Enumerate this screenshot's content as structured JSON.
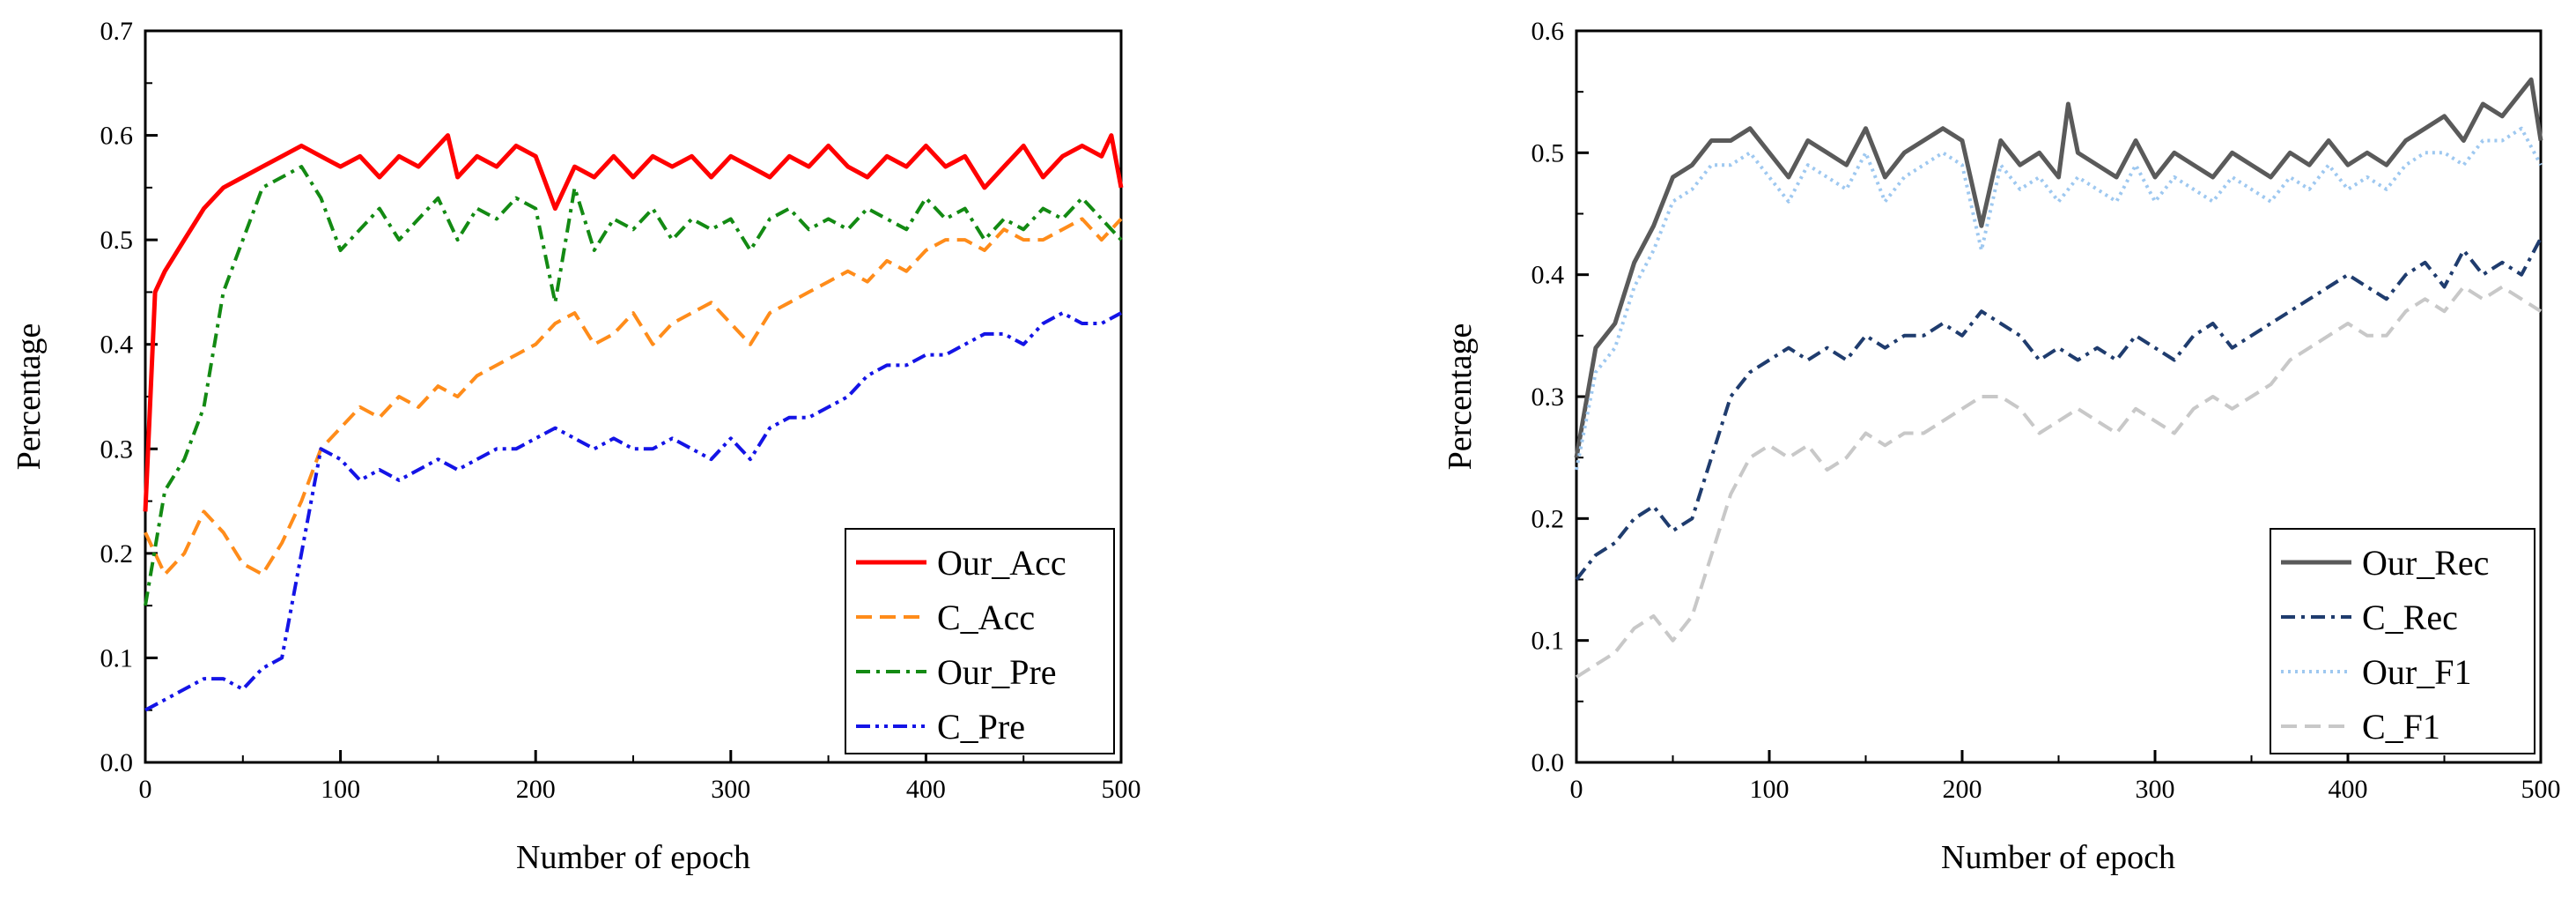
{
  "chart_data": [
    {
      "type": "line",
      "xlabel": "Number of epoch",
      "ylabel": "Percentage",
      "xlim": [
        0,
        500
      ],
      "ylim": [
        0,
        0.7
      ],
      "xticks": [
        "0",
        "100",
        "200",
        "300",
        "400",
        "500"
      ],
      "yticks": [
        "0.0",
        "0.1",
        "0.2",
        "0.3",
        "0.4",
        "0.5",
        "0.6",
        "0.7"
      ],
      "grid": false,
      "legend_position": "bottom-right",
      "series": [
        {
          "name": "Our_Acc",
          "color": "#ff0000",
          "style": "solid",
          "x": [
            0,
            5,
            10,
            20,
            30,
            40,
            50,
            60,
            70,
            80,
            90,
            100,
            110,
            120,
            130,
            140,
            150,
            155,
            160,
            170,
            180,
            190,
            200,
            210,
            220,
            230,
            240,
            250,
            260,
            270,
            280,
            290,
            300,
            310,
            320,
            330,
            340,
            350,
            360,
            370,
            380,
            390,
            400,
            410,
            420,
            430,
            440,
            450,
            460,
            470,
            480,
            490,
            495,
            500
          ],
          "values": [
            0.24,
            0.45,
            0.47,
            0.5,
            0.53,
            0.55,
            0.56,
            0.57,
            0.58,
            0.59,
            0.58,
            0.57,
            0.58,
            0.56,
            0.58,
            0.57,
            0.59,
            0.6,
            0.56,
            0.58,
            0.57,
            0.59,
            0.58,
            0.53,
            0.57,
            0.56,
            0.58,
            0.56,
            0.58,
            0.57,
            0.58,
            0.56,
            0.58,
            0.57,
            0.56,
            0.58,
            0.57,
            0.59,
            0.57,
            0.56,
            0.58,
            0.57,
            0.59,
            0.57,
            0.58,
            0.55,
            0.57,
            0.59,
            0.56,
            0.58,
            0.59,
            0.58,
            0.6,
            0.55
          ]
        },
        {
          "name": "C_Acc",
          "color": "#ff8c1a",
          "style": "dashed",
          "x": [
            0,
            10,
            20,
            30,
            40,
            50,
            60,
            70,
            80,
            90,
            100,
            110,
            120,
            130,
            140,
            150,
            160,
            170,
            180,
            190,
            200,
            210,
            220,
            230,
            240,
            250,
            260,
            270,
            280,
            290,
            300,
            310,
            320,
            330,
            340,
            350,
            360,
            370,
            380,
            390,
            400,
            410,
            420,
            430,
            440,
            450,
            460,
            470,
            480,
            490,
            500
          ],
          "values": [
            0.22,
            0.18,
            0.2,
            0.24,
            0.22,
            0.19,
            0.18,
            0.21,
            0.25,
            0.3,
            0.32,
            0.34,
            0.33,
            0.35,
            0.34,
            0.36,
            0.35,
            0.37,
            0.38,
            0.39,
            0.4,
            0.42,
            0.43,
            0.4,
            0.41,
            0.43,
            0.4,
            0.42,
            0.43,
            0.44,
            0.42,
            0.4,
            0.43,
            0.44,
            0.45,
            0.46,
            0.47,
            0.46,
            0.48,
            0.47,
            0.49,
            0.5,
            0.5,
            0.49,
            0.51,
            0.5,
            0.5,
            0.51,
            0.52,
            0.5,
            0.52
          ]
        },
        {
          "name": "Our_Pre",
          "color": "#138a13",
          "style": "dashdot",
          "x": [
            0,
            10,
            20,
            30,
            40,
            50,
            60,
            70,
            80,
            90,
            100,
            110,
            120,
            130,
            140,
            150,
            160,
            170,
            180,
            190,
            200,
            210,
            220,
            230,
            240,
            250,
            260,
            270,
            280,
            290,
            300,
            310,
            320,
            330,
            340,
            350,
            360,
            370,
            380,
            390,
            400,
            410,
            420,
            430,
            440,
            450,
            460,
            470,
            480,
            490,
            500
          ],
          "values": [
            0.15,
            0.26,
            0.29,
            0.34,
            0.45,
            0.5,
            0.55,
            0.56,
            0.57,
            0.54,
            0.49,
            0.51,
            0.53,
            0.5,
            0.52,
            0.54,
            0.5,
            0.53,
            0.52,
            0.54,
            0.53,
            0.44,
            0.55,
            0.49,
            0.52,
            0.51,
            0.53,
            0.5,
            0.52,
            0.51,
            0.52,
            0.49,
            0.52,
            0.53,
            0.51,
            0.52,
            0.51,
            0.53,
            0.52,
            0.51,
            0.54,
            0.52,
            0.53,
            0.5,
            0.52,
            0.51,
            0.53,
            0.52,
            0.54,
            0.52,
            0.5
          ]
        },
        {
          "name": "C_Pre",
          "color": "#1414e6",
          "style": "dashdotdot",
          "x": [
            0,
            10,
            20,
            30,
            40,
            50,
            60,
            70,
            80,
            90,
            100,
            110,
            120,
            130,
            140,
            150,
            160,
            170,
            180,
            190,
            200,
            210,
            220,
            230,
            240,
            250,
            260,
            270,
            280,
            290,
            300,
            310,
            320,
            330,
            340,
            350,
            360,
            370,
            380,
            390,
            400,
            410,
            420,
            430,
            440,
            450,
            460,
            470,
            480,
            490,
            500
          ],
          "values": [
            0.05,
            0.06,
            0.07,
            0.08,
            0.08,
            0.07,
            0.09,
            0.1,
            0.2,
            0.3,
            0.29,
            0.27,
            0.28,
            0.27,
            0.28,
            0.29,
            0.28,
            0.29,
            0.3,
            0.3,
            0.31,
            0.32,
            0.31,
            0.3,
            0.31,
            0.3,
            0.3,
            0.31,
            0.3,
            0.29,
            0.31,
            0.29,
            0.32,
            0.33,
            0.33,
            0.34,
            0.35,
            0.37,
            0.38,
            0.38,
            0.39,
            0.39,
            0.4,
            0.41,
            0.41,
            0.4,
            0.42,
            0.43,
            0.42,
            0.42,
            0.43
          ]
        }
      ]
    },
    {
      "type": "line",
      "xlabel": "Number of epoch",
      "ylabel": "Percentage",
      "xlim": [
        0,
        500
      ],
      "ylim": [
        0,
        0.6
      ],
      "xticks": [
        "0",
        "100",
        "200",
        "300",
        "400",
        "500"
      ],
      "yticks": [
        "0.0",
        "0.1",
        "0.2",
        "0.3",
        "0.4",
        "0.5",
        "0.6"
      ],
      "grid": false,
      "legend_position": "bottom-right",
      "series": [
        {
          "name": "Our_Rec",
          "color": "#5a5a5a",
          "style": "solid",
          "x": [
            0,
            10,
            20,
            30,
            40,
            50,
            60,
            70,
            80,
            90,
            100,
            110,
            120,
            130,
            140,
            150,
            160,
            170,
            180,
            190,
            200,
            210,
            220,
            230,
            240,
            250,
            255,
            260,
            270,
            280,
            290,
            300,
            310,
            320,
            330,
            340,
            350,
            360,
            370,
            380,
            390,
            400,
            410,
            420,
            430,
            440,
            450,
            460,
            470,
            480,
            490,
            495,
            500
          ],
          "values": [
            0.25,
            0.34,
            0.36,
            0.41,
            0.44,
            0.48,
            0.49,
            0.51,
            0.51,
            0.52,
            0.5,
            0.48,
            0.51,
            0.5,
            0.49,
            0.52,
            0.48,
            0.5,
            0.51,
            0.52,
            0.51,
            0.44,
            0.51,
            0.49,
            0.5,
            0.48,
            0.54,
            0.5,
            0.49,
            0.48,
            0.51,
            0.48,
            0.5,
            0.49,
            0.48,
            0.5,
            0.49,
            0.48,
            0.5,
            0.49,
            0.51,
            0.49,
            0.5,
            0.49,
            0.51,
            0.52,
            0.53,
            0.51,
            0.54,
            0.53,
            0.55,
            0.56,
            0.51
          ]
        },
        {
          "name": "C_Rec",
          "color": "#1f3c6e",
          "style": "dashdot",
          "x": [
            0,
            10,
            20,
            30,
            40,
            50,
            60,
            70,
            80,
            90,
            100,
            110,
            120,
            130,
            140,
            150,
            160,
            170,
            180,
            190,
            200,
            210,
            220,
            230,
            240,
            250,
            260,
            270,
            280,
            290,
            300,
            310,
            320,
            330,
            340,
            350,
            360,
            370,
            380,
            390,
            400,
            410,
            420,
            430,
            440,
            450,
            460,
            470,
            480,
            490,
            500
          ],
          "values": [
            0.15,
            0.17,
            0.18,
            0.2,
            0.21,
            0.19,
            0.2,
            0.25,
            0.3,
            0.32,
            0.33,
            0.34,
            0.33,
            0.34,
            0.33,
            0.35,
            0.34,
            0.35,
            0.35,
            0.36,
            0.35,
            0.37,
            0.36,
            0.35,
            0.33,
            0.34,
            0.33,
            0.34,
            0.33,
            0.35,
            0.34,
            0.33,
            0.35,
            0.36,
            0.34,
            0.35,
            0.36,
            0.37,
            0.38,
            0.39,
            0.4,
            0.39,
            0.38,
            0.4,
            0.41,
            0.39,
            0.42,
            0.4,
            0.41,
            0.4,
            0.43
          ]
        },
        {
          "name": "Our_F1",
          "color": "#9ec8f0",
          "style": "dotted",
          "x": [
            0,
            10,
            20,
            30,
            40,
            50,
            60,
            70,
            80,
            90,
            100,
            110,
            120,
            130,
            140,
            150,
            160,
            170,
            180,
            190,
            200,
            210,
            220,
            230,
            240,
            250,
            260,
            270,
            280,
            290,
            300,
            310,
            320,
            330,
            340,
            350,
            360,
            370,
            380,
            390,
            400,
            410,
            420,
            430,
            440,
            450,
            460,
            470,
            480,
            490,
            500
          ],
          "values": [
            0.24,
            0.32,
            0.34,
            0.39,
            0.42,
            0.46,
            0.47,
            0.49,
            0.49,
            0.5,
            0.48,
            0.46,
            0.49,
            0.48,
            0.47,
            0.5,
            0.46,
            0.48,
            0.49,
            0.5,
            0.49,
            0.42,
            0.49,
            0.47,
            0.48,
            0.46,
            0.48,
            0.47,
            0.46,
            0.49,
            0.46,
            0.48,
            0.47,
            0.46,
            0.48,
            0.47,
            0.46,
            0.48,
            0.47,
            0.49,
            0.47,
            0.48,
            0.47,
            0.49,
            0.5,
            0.5,
            0.49,
            0.51,
            0.51,
            0.52,
            0.49
          ]
        },
        {
          "name": "C_F1",
          "color": "#c8c8c8",
          "style": "dashed",
          "x": [
            0,
            10,
            20,
            30,
            40,
            50,
            60,
            70,
            80,
            90,
            100,
            110,
            120,
            130,
            140,
            150,
            160,
            170,
            180,
            190,
            200,
            210,
            220,
            230,
            240,
            250,
            260,
            270,
            280,
            290,
            300,
            310,
            320,
            330,
            340,
            350,
            360,
            370,
            380,
            390,
            400,
            410,
            420,
            430,
            440,
            450,
            460,
            470,
            480,
            490,
            500
          ],
          "values": [
            0.07,
            0.08,
            0.09,
            0.11,
            0.12,
            0.1,
            0.12,
            0.17,
            0.22,
            0.25,
            0.26,
            0.25,
            0.26,
            0.24,
            0.25,
            0.27,
            0.26,
            0.27,
            0.27,
            0.28,
            0.29,
            0.3,
            0.3,
            0.29,
            0.27,
            0.28,
            0.29,
            0.28,
            0.27,
            0.29,
            0.28,
            0.27,
            0.29,
            0.3,
            0.29,
            0.3,
            0.31,
            0.33,
            0.34,
            0.35,
            0.36,
            0.35,
            0.35,
            0.37,
            0.38,
            0.37,
            0.39,
            0.38,
            0.39,
            0.38,
            0.37
          ]
        }
      ]
    }
  ]
}
